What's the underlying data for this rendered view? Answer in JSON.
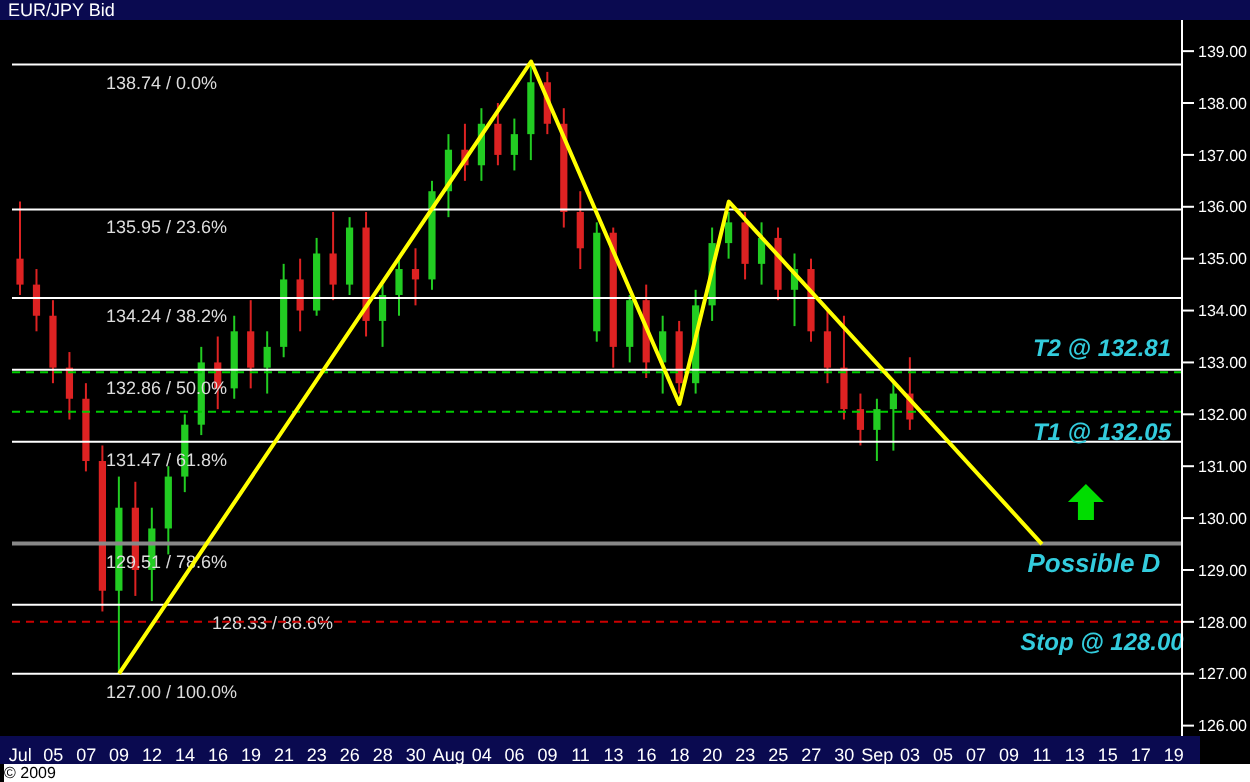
{
  "chart_data": {
    "type": "candlestick",
    "title": "EUR/JPY Bid",
    "categories": [
      "Jul",
      null,
      "05",
      null,
      "07",
      null,
      "09",
      null,
      "12",
      null,
      "14",
      null,
      "16",
      null,
      "19",
      null,
      "21",
      null,
      "23",
      null,
      "26",
      null,
      "28",
      null,
      "30",
      null,
      "Aug",
      null,
      "04",
      null,
      "06",
      null,
      "09",
      null,
      "11",
      null,
      "13",
      null,
      "16",
      null,
      "18",
      null,
      "20",
      null,
      "23",
      null,
      "25",
      null,
      "27",
      null,
      "30",
      null,
      "Sep",
      null,
      "03",
      null,
      "05",
      null,
      "07",
      null,
      "09",
      null,
      "11",
      null,
      "13",
      null,
      "15",
      null,
      "17",
      null,
      "19"
    ],
    "ohlc": [
      [
        135.0,
        136.1,
        134.3,
        134.5
      ],
      [
        134.5,
        134.8,
        133.6,
        133.9
      ],
      [
        133.9,
        134.2,
        132.6,
        132.9
      ],
      [
        132.9,
        133.2,
        131.9,
        132.3
      ],
      [
        132.3,
        132.6,
        130.9,
        131.1
      ],
      [
        131.1,
        131.4,
        128.2,
        128.6
      ],
      [
        128.6,
        130.8,
        127.0,
        130.2
      ],
      [
        130.2,
        130.7,
        128.5,
        129.0
      ],
      [
        129.0,
        130.2,
        128.4,
        129.8
      ],
      [
        129.8,
        131.0,
        129.3,
        130.8
      ],
      [
        130.8,
        132.0,
        130.5,
        131.8
      ],
      [
        131.8,
        133.3,
        131.6,
        133.0
      ],
      [
        133.0,
        133.5,
        132.1,
        132.5
      ],
      [
        132.5,
        133.9,
        132.3,
        133.6
      ],
      [
        133.6,
        134.2,
        132.5,
        132.9
      ],
      [
        132.9,
        133.6,
        132.4,
        133.3
      ],
      [
        133.3,
        134.9,
        133.1,
        134.6
      ],
      [
        134.6,
        135.0,
        133.6,
        134.0
      ],
      [
        134.0,
        135.4,
        133.9,
        135.1
      ],
      [
        135.1,
        135.9,
        134.2,
        134.5
      ],
      [
        134.5,
        135.8,
        134.3,
        135.6
      ],
      [
        135.6,
        135.9,
        133.5,
        133.8
      ],
      [
        133.8,
        134.5,
        133.3,
        134.3
      ],
      [
        134.3,
        135.0,
        133.9,
        134.8
      ],
      [
        134.8,
        135.2,
        134.1,
        134.6
      ],
      [
        134.6,
        136.5,
        134.4,
        136.3
      ],
      [
        136.3,
        137.4,
        135.8,
        137.1
      ],
      [
        137.1,
        137.6,
        136.5,
        136.8
      ],
      [
        136.8,
        137.9,
        136.5,
        137.6
      ],
      [
        137.6,
        138.0,
        136.8,
        137.0
      ],
      [
        137.0,
        137.7,
        136.7,
        137.4
      ],
      [
        137.4,
        138.8,
        136.9,
        138.4
      ],
      [
        138.4,
        138.6,
        137.4,
        137.6
      ],
      [
        137.6,
        137.9,
        135.6,
        135.9
      ],
      [
        135.9,
        136.3,
        134.8,
        135.2
      ],
      [
        133.6,
        135.7,
        133.4,
        135.5
      ],
      [
        135.5,
        135.6,
        132.9,
        133.3
      ],
      [
        133.3,
        134.3,
        133.0,
        134.2
      ],
      [
        134.2,
        134.5,
        132.7,
        133.0
      ],
      [
        133.0,
        133.9,
        132.4,
        133.6
      ],
      [
        133.6,
        133.8,
        132.4,
        132.6
      ],
      [
        132.6,
        134.4,
        132.4,
        134.1
      ],
      [
        134.1,
        135.6,
        133.8,
        135.3
      ],
      [
        135.3,
        135.9,
        135.0,
        135.7
      ],
      [
        135.7,
        135.9,
        134.6,
        134.9
      ],
      [
        134.9,
        135.7,
        134.5,
        135.4
      ],
      [
        135.4,
        135.6,
        134.2,
        134.4
      ],
      [
        134.4,
        135.1,
        133.7,
        134.8
      ],
      [
        134.8,
        135.0,
        133.4,
        133.6
      ],
      [
        133.6,
        134.0,
        132.6,
        132.9
      ],
      [
        132.9,
        133.9,
        131.9,
        132.1
      ],
      [
        132.1,
        132.4,
        131.4,
        131.7
      ],
      [
        131.7,
        132.3,
        131.1,
        132.1
      ],
      [
        132.1,
        132.6,
        131.3,
        132.4
      ],
      [
        132.4,
        133.1,
        131.7,
        131.9
      ],
      null,
      null,
      null,
      null,
      null,
      null,
      null,
      null,
      null,
      null,
      null,
      null,
      null,
      null,
      null,
      null
    ],
    "series": [
      {
        "type": "line",
        "color": "#ffff00",
        "values": [
          null,
          null,
          null,
          null,
          null,
          null,
          127.0,
          null,
          null,
          null,
          null,
          null,
          null,
          null,
          null,
          null,
          null,
          null,
          null,
          null,
          null,
          null,
          null,
          null,
          null,
          null,
          null,
          null,
          null,
          null,
          null,
          138.8,
          null,
          null,
          null,
          null,
          null,
          null,
          null,
          null,
          132.2,
          null,
          null,
          136.1,
          null,
          null,
          null,
          null,
          null,
          null,
          null,
          null,
          null,
          null,
          null,
          null,
          null,
          null,
          null,
          null,
          null,
          null,
          129.5,
          null,
          null,
          null,
          null,
          null,
          null,
          null,
          null
        ]
      }
    ],
    "ylim": [
      125.8,
      139.6
    ],
    "yticks": [
      {
        "value": 126,
        "label": "126.00"
      },
      {
        "value": 127,
        "label": "127.00"
      },
      {
        "value": 128,
        "label": "128.00"
      },
      {
        "value": 129,
        "label": "129.00"
      },
      {
        "value": 130,
        "label": "130.00"
      },
      {
        "value": 131,
        "label": "131.00"
      },
      {
        "value": 132,
        "label": "132.00"
      },
      {
        "value": 133,
        "label": "133.00"
      },
      {
        "value": 134,
        "label": "134.00"
      },
      {
        "value": 135,
        "label": "135.00"
      },
      {
        "value": 136,
        "label": "136.00"
      },
      {
        "value": 137,
        "label": "137.00"
      },
      {
        "value": 138,
        "label": "138.00"
      },
      {
        "value": 139,
        "label": "139.00"
      }
    ],
    "ref_lines": [
      {
        "axis": "y",
        "value": 138.74,
        "label": "138.74 / 0.0%",
        "color": "#ffffff",
        "line_style": "solid"
      },
      {
        "axis": "y",
        "value": 135.95,
        "label": "135.95 / 23.6%",
        "color": "#ffffff",
        "line_style": "solid"
      },
      {
        "axis": "y",
        "value": 134.24,
        "label": "134.24 / 38.2%",
        "color": "#ffffff",
        "line_style": "solid"
      },
      {
        "axis": "y",
        "value": 132.86,
        "label": "132.86 / 50.0%",
        "color": "#ffffff",
        "line_style": "solid"
      },
      {
        "axis": "y",
        "value": 131.47,
        "label": "131.47 / 61.8%",
        "color": "#ffffff",
        "line_style": "solid"
      },
      {
        "axis": "y",
        "value": 129.51,
        "label": "129.51 / 78.6%",
        "color": "#888888",
        "line_style": "solid"
      },
      {
        "axis": "y",
        "value": 128.33,
        "label": "128.33 / 88.6%",
        "color": "#ffffff",
        "line_style": "solid"
      },
      {
        "axis": "y",
        "value": 127.0,
        "label": "127.00 / 100.0%",
        "color": "#ffffff",
        "line_style": "solid"
      },
      {
        "axis": "y",
        "value": 132.81,
        "label": "T2 @ 132.81",
        "color": "#00cc00",
        "line_style": "dashed"
      },
      {
        "axis": "y",
        "value": 132.05,
        "label": "T1 @ 132.05",
        "color": "#00cc00",
        "line_style": "dashed"
      },
      {
        "axis": "y",
        "value": 128.0,
        "label": "Stop @ 128.00",
        "color": "#cc0000",
        "line_style": "dashed"
      }
    ],
    "annotations": [
      "Possible D",
      "© 2009"
    ]
  }
}
